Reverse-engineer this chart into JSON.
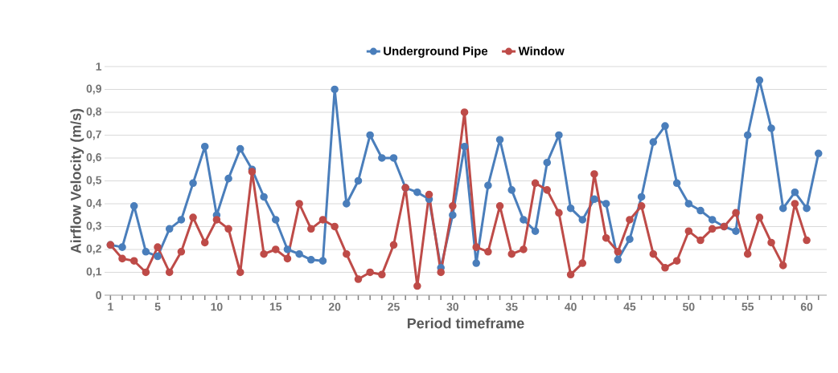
{
  "chart_data": {
    "type": "line",
    "xlabel": "Period timeframe",
    "ylabel": "Airflow Velocity (m/s)",
    "x": [
      1,
      2,
      3,
      4,
      5,
      6,
      7,
      8,
      9,
      10,
      11,
      12,
      13,
      14,
      15,
      16,
      17,
      18,
      19,
      20,
      21,
      22,
      23,
      24,
      25,
      26,
      27,
      28,
      29,
      30,
      31,
      32,
      33,
      34,
      35,
      36,
      37,
      38,
      39,
      40,
      41,
      42,
      43,
      44,
      45,
      46,
      47,
      48,
      49,
      50,
      51,
      52,
      53,
      54,
      55,
      56,
      57,
      58,
      59,
      60,
      61
    ],
    "series": [
      {
        "name": "Underground Pipe",
        "color": "#4a7ebb",
        "values": [
          0.22,
          0.21,
          0.39,
          0.19,
          0.17,
          0.29,
          0.33,
          0.49,
          0.65,
          0.35,
          0.51,
          0.64,
          0.55,
          0.43,
          0.33,
          0.2,
          0.18,
          0.155,
          0.15,
          0.9,
          0.4,
          0.5,
          0.7,
          0.6,
          0.6,
          0.47,
          0.45,
          0.42,
          0.12,
          0.35,
          0.65,
          0.14,
          0.48,
          0.68,
          0.46,
          0.33,
          0.28,
          0.58,
          0.7,
          0.38,
          0.33,
          0.42,
          0.4,
          0.155,
          0.245,
          0.43,
          0.67,
          0.74,
          0.49,
          0.4,
          0.37,
          0.33,
          0.3,
          0.28,
          0.7,
          0.94,
          0.73,
          0.38,
          0.45,
          0.38,
          0.62
        ]
      },
      {
        "name": "Window",
        "color": "#be4b48",
        "values": [
          0.22,
          0.16,
          0.15,
          0.1,
          0.21,
          0.1,
          0.19,
          0.34,
          0.23,
          0.33,
          0.29,
          0.1,
          0.54,
          0.18,
          0.2,
          0.16,
          0.4,
          0.29,
          0.33,
          0.3,
          0.18,
          0.07,
          0.1,
          0.09,
          0.22,
          0.47,
          0.04,
          0.44,
          0.1,
          0.39,
          0.8,
          0.21,
          0.19,
          0.39,
          0.18,
          0.2,
          0.49,
          0.46,
          0.36,
          0.09,
          0.14,
          0.53,
          0.25,
          0.19,
          0.33,
          0.39,
          0.18,
          0.12,
          0.15,
          0.28,
          0.24,
          0.29,
          0.3,
          0.36,
          0.18,
          0.34,
          0.23,
          0.13,
          0.4,
          0.24,
          null
        ]
      }
    ],
    "xlim": [
      0.5,
      61.7
    ],
    "ylim": [
      0,
      1
    ],
    "xticks": [
      1,
      {
        "value": 2,
        "label": null
      },
      {
        "value": 3,
        "label": null
      },
      {
        "value": 4,
        "label": null
      },
      5,
      {
        "value": 6,
        "label": null
      },
      {
        "value": 7,
        "label": null
      },
      {
        "value": 8,
        "label": null
      },
      {
        "value": 9,
        "label": null
      },
      10,
      {
        "value": 11,
        "label": null
      },
      {
        "value": 12,
        "label": null
      },
      {
        "value": 13,
        "label": null
      },
      {
        "value": 14,
        "label": null
      },
      15,
      {
        "value": 16,
        "label": null
      },
      {
        "value": 17,
        "label": null
      },
      {
        "value": 18,
        "label": null
      },
      {
        "value": 19,
        "label": null
      },
      20,
      {
        "value": 21,
        "label": null
      },
      {
        "value": 22,
        "label": null
      },
      {
        "value": 23,
        "label": null
      },
      {
        "value": 24,
        "label": null
      },
      25,
      {
        "value": 26,
        "label": null
      },
      {
        "value": 27,
        "label": null
      },
      {
        "value": 28,
        "label": null
      },
      {
        "value": 29,
        "label": null
      },
      30,
      {
        "value": 31,
        "label": null
      },
      {
        "value": 32,
        "label": null
      },
      {
        "value": 33,
        "label": null
      },
      {
        "value": 34,
        "label": null
      },
      35,
      {
        "value": 36,
        "label": null
      },
      {
        "value": 37,
        "label": null
      },
      {
        "value": 38,
        "label": null
      },
      {
        "value": 39,
        "label": null
      },
      40,
      {
        "value": 41,
        "label": null
      },
      {
        "value": 42,
        "label": null
      },
      {
        "value": 43,
        "label": null
      },
      {
        "value": 44,
        "label": null
      },
      45,
      {
        "value": 46,
        "label": null
      },
      {
        "value": 47,
        "label": null
      },
      {
        "value": 48,
        "label": null
      },
      {
        "value": 49,
        "label": null
      },
      50,
      {
        "value": 51,
        "label": null
      },
      {
        "value": 52,
        "label": null
      },
      {
        "value": 53,
        "label": null
      },
      {
        "value": 54,
        "label": null
      },
      55,
      {
        "value": 56,
        "label": null
      },
      {
        "value": 57,
        "label": null
      },
      {
        "value": 58,
        "label": null
      },
      {
        "value": 59,
        "label": null
      },
      60,
      {
        "value": 61,
        "label": null
      }
    ],
    "yticks": [
      0,
      {
        "value": 0.1,
        "label": "0,1"
      },
      {
        "value": 0.2,
        "label": "0,2"
      },
      {
        "value": 0.3,
        "label": "0,3"
      },
      {
        "value": 0.4,
        "label": "0,4"
      },
      {
        "value": 0.5,
        "label": "0,5"
      },
      {
        "value": 0.6,
        "label": "0,6"
      },
      {
        "value": 0.7,
        "label": "0,7"
      },
      {
        "value": 0.8,
        "label": "0,8"
      },
      {
        "value": 0.9,
        "label": "0,9"
      },
      1
    ],
    "grid": "y",
    "legend": "top",
    "marker": "circle",
    "line_style": "solid"
  }
}
